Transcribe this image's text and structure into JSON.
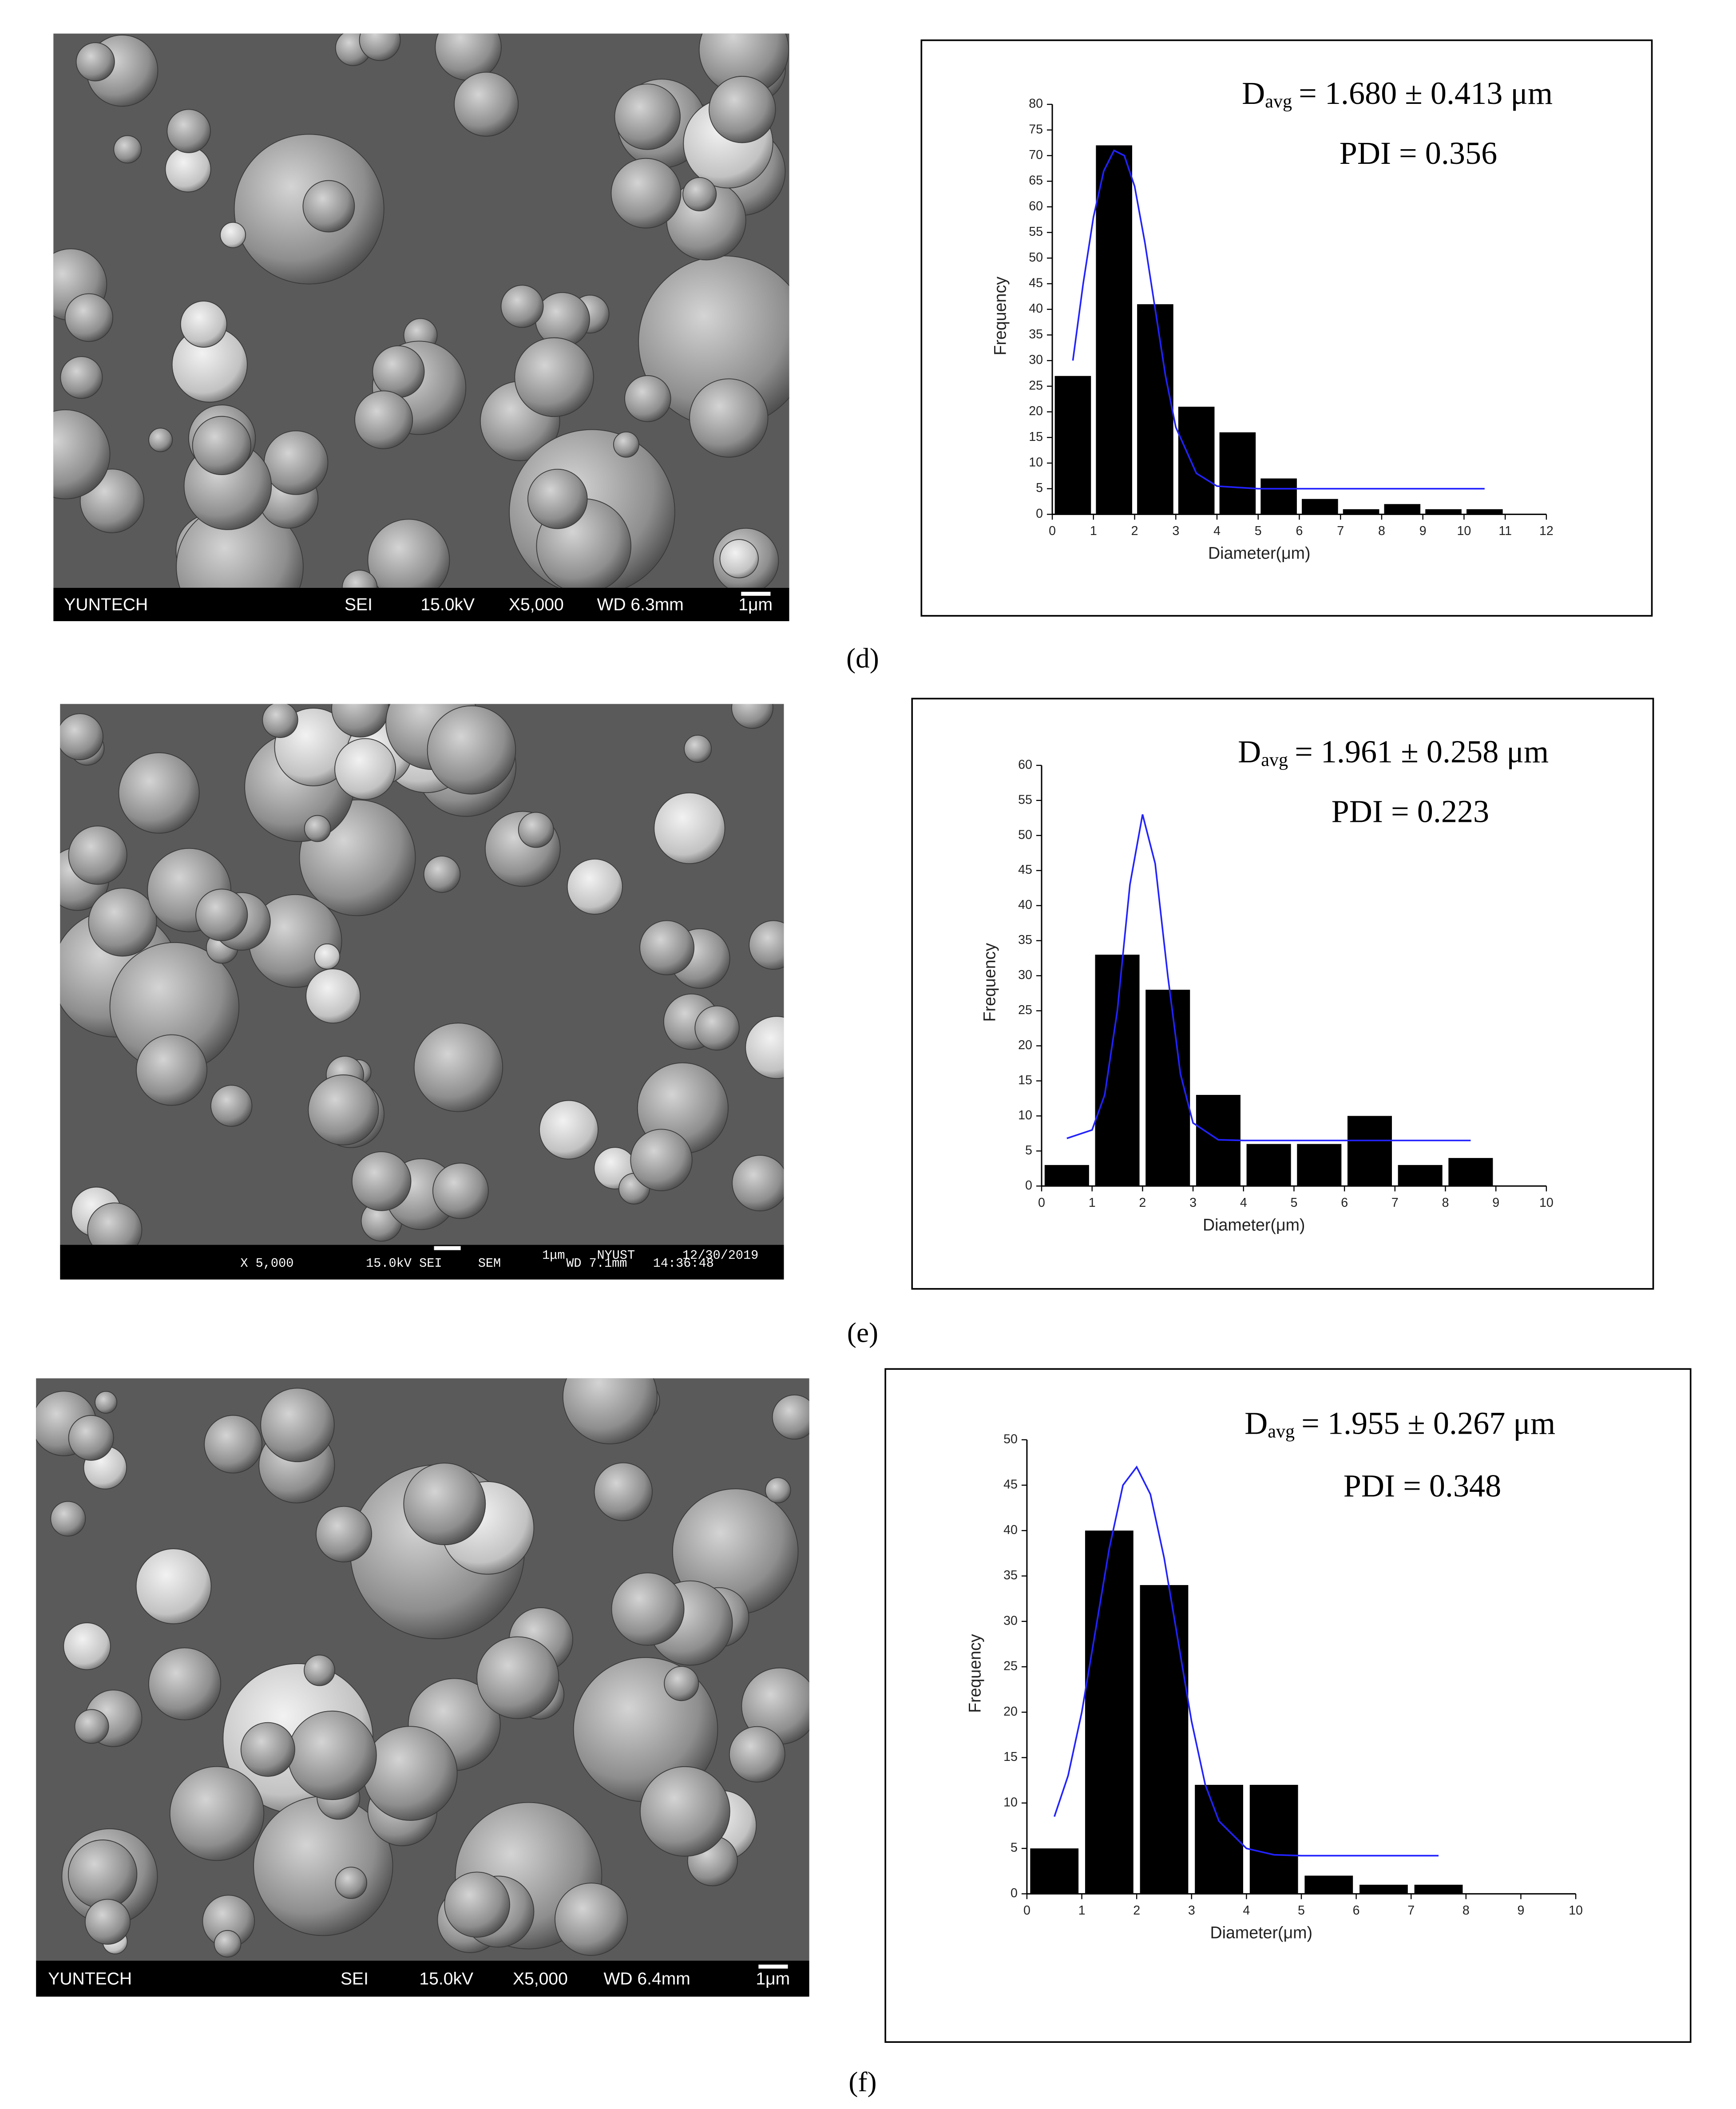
{
  "chart_data": [
    {
      "type": "histogram",
      "panel_label": "(d)",
      "annotation": {
        "symbol": "D",
        "subscript": "avg",
        "text": "= 1.680 ± 0.413 μm",
        "pdi": "PDI = 0.356"
      },
      "xlabel": "Diameter(μm)",
      "ylabel": "Frequency",
      "bins": [
        0,
        1,
        2,
        3,
        4,
        5,
        6,
        7,
        8,
        9,
        10,
        11
      ],
      "values": [
        27,
        72,
        41,
        21,
        16,
        7,
        3,
        1,
        2,
        1,
        1
      ],
      "color": "#000000",
      "fit_x": [
        0.5,
        0.75,
        1,
        1.25,
        1.5,
        1.75,
        2,
        2.25,
        2.5,
        2.75,
        3,
        3.5,
        4,
        5,
        6,
        8,
        10.5
      ],
      "fit_y": [
        30,
        45,
        58,
        67,
        71,
        70,
        64,
        53,
        40,
        27,
        17,
        8,
        5.5,
        5,
        5,
        5,
        5
      ],
      "fit_color": "#2222ff",
      "xlim": [
        0,
        12
      ],
      "xticks": [
        0,
        1,
        2,
        3,
        4,
        5,
        6,
        7,
        8,
        9,
        10,
        11,
        12
      ],
      "ylim": [
        0,
        80
      ],
      "yticks": [
        0,
        5,
        10,
        15,
        20,
        25,
        30,
        35,
        40,
        45,
        50,
        55,
        60,
        65,
        70,
        75,
        80
      ],
      "sem_info": [
        "YUNTECH",
        "SEI",
        "15.0kV",
        "X5,000",
        "WD 6.3mm",
        "1μm"
      ]
    },
    {
      "type": "histogram",
      "panel_label": "(e)",
      "annotation": {
        "symbol": "D",
        "subscript": "avg",
        "text": "= 1.961 ± 0.258 μm",
        "pdi": "PDI = 0.223"
      },
      "xlabel": "Diameter(μm)",
      "ylabel": "Frequency",
      "bins": [
        0,
        1,
        2,
        3,
        4,
        5,
        6,
        7,
        8,
        9
      ],
      "values": [
        3,
        33,
        28,
        13,
        6,
        6,
        10,
        3,
        4
      ],
      "color": "#000000",
      "fit_x": [
        0.5,
        1,
        1.25,
        1.5,
        1.75,
        2,
        2.25,
        2.5,
        2.75,
        3,
        3.5,
        4,
        8.5
      ],
      "fit_y": [
        6.8,
        8,
        13,
        25,
        43,
        53,
        46,
        30,
        16,
        9,
        6.6,
        6.5,
        6.5
      ],
      "fit_color": "#2222ff",
      "xlim": [
        0,
        10
      ],
      "xticks": [
        0,
        1,
        2,
        3,
        4,
        5,
        6,
        7,
        8,
        9,
        10
      ],
      "ylim": [
        0,
        60
      ],
      "yticks": [
        0,
        5,
        10,
        15,
        20,
        25,
        30,
        35,
        40,
        45,
        50,
        55,
        60
      ],
      "sem_info": [
        "X 5,000",
        "15.0kV SEI",
        "SEM",
        "WD 7.1mm",
        "14:36:48",
        "1μm",
        "NYUST",
        "12/30/2019"
      ]
    },
    {
      "type": "histogram",
      "panel_label": "(f)",
      "annotation": {
        "symbol": "D",
        "subscript": "avg",
        "text": "= 1.955 ± 0.267 μm",
        "pdi": "PDI = 0.348"
      },
      "xlabel": "Diameter(μm)",
      "ylabel": "Frequency",
      "bins": [
        0,
        1,
        2,
        3,
        4,
        5,
        6,
        7,
        8
      ],
      "values": [
        5,
        40,
        34,
        12,
        12,
        2,
        1,
        1
      ],
      "color": "#000000",
      "fit_x": [
        0.5,
        0.75,
        1,
        1.25,
        1.5,
        1.75,
        2,
        2.25,
        2.5,
        2.75,
        3,
        3.25,
        3.5,
        4,
        4.5,
        5,
        7.5
      ],
      "fit_y": [
        8.5,
        13,
        20,
        29,
        38,
        45,
        47,
        44,
        37,
        28,
        19,
        12,
        8,
        5,
        4.3,
        4.2,
        4.2
      ],
      "fit_color": "#2222ff",
      "xlim": [
        0,
        10
      ],
      "xticks": [
        0,
        1,
        2,
        3,
        4,
        5,
        6,
        7,
        8,
        9,
        10
      ],
      "ylim": [
        0,
        50
      ],
      "yticks": [
        0,
        5,
        10,
        15,
        20,
        25,
        30,
        35,
        40,
        45,
        50
      ],
      "sem_info": [
        "YUNTECH",
        "SEI",
        "15.0kV",
        "X5,000",
        "WD 6.4mm",
        "1μm"
      ]
    }
  ]
}
